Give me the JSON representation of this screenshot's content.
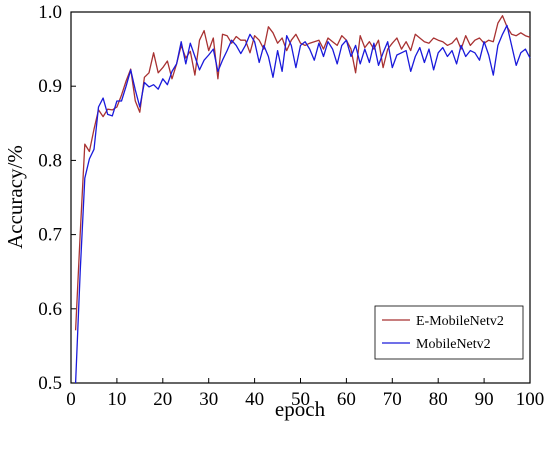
{
  "chart_data": {
    "type": "line",
    "xlabel": "epoch",
    "ylabel": "Accuracy/%",
    "xlim": [
      0,
      100
    ],
    "ylim": [
      0.5,
      1.0
    ],
    "xticks": [
      0,
      10,
      20,
      30,
      40,
      50,
      60,
      70,
      80,
      90,
      100
    ],
    "yticks": [
      0.5,
      0.6,
      0.7,
      0.8,
      0.9,
      1.0
    ],
    "ytick_labels": [
      "0.5",
      "0.6",
      "0.7",
      "0.8",
      "0.9",
      "1.0"
    ],
    "grid": false,
    "legend_position": "bottom-right",
    "series": [
      {
        "name": "E-MobileNetv2",
        "color": "#a83232",
        "x": [
          1,
          2,
          3,
          4,
          5,
          6,
          7,
          8,
          9,
          10,
          11,
          12,
          13,
          14,
          15,
          16,
          17,
          18,
          19,
          20,
          21,
          22,
          23,
          24,
          25,
          26,
          27,
          28,
          29,
          30,
          31,
          32,
          33,
          34,
          35,
          36,
          37,
          38,
          39,
          40,
          41,
          42,
          43,
          44,
          45,
          46,
          47,
          48,
          49,
          50,
          51,
          52,
          53,
          54,
          55,
          56,
          57,
          58,
          59,
          60,
          61,
          62,
          63,
          64,
          65,
          66,
          67,
          68,
          69,
          70,
          71,
          72,
          73,
          74,
          75,
          76,
          77,
          78,
          79,
          80,
          81,
          82,
          83,
          84,
          85,
          86,
          87,
          88,
          89,
          90,
          91,
          92,
          93,
          94,
          95,
          96,
          97,
          98,
          99,
          100
        ],
        "values": [
          0.571,
          0.701,
          0.822,
          0.812,
          0.842,
          0.868,
          0.859,
          0.869,
          0.868,
          0.872,
          0.888,
          0.907,
          0.923,
          0.88,
          0.865,
          0.912,
          0.918,
          0.945,
          0.918,
          0.925,
          0.934,
          0.91,
          0.93,
          0.955,
          0.938,
          0.947,
          0.915,
          0.962,
          0.975,
          0.948,
          0.965,
          0.91,
          0.97,
          0.968,
          0.958,
          0.967,
          0.962,
          0.962,
          0.945,
          0.968,
          0.962,
          0.95,
          0.98,
          0.972,
          0.958,
          0.965,
          0.948,
          0.962,
          0.97,
          0.958,
          0.955,
          0.958,
          0.96,
          0.962,
          0.95,
          0.965,
          0.96,
          0.955,
          0.968,
          0.962,
          0.95,
          0.918,
          0.968,
          0.952,
          0.96,
          0.95,
          0.962,
          0.925,
          0.95,
          0.958,
          0.965,
          0.95,
          0.96,
          0.948,
          0.97,
          0.965,
          0.96,
          0.958,
          0.965,
          0.962,
          0.96,
          0.955,
          0.958,
          0.965,
          0.95,
          0.968,
          0.955,
          0.962,
          0.965,
          0.958,
          0.962,
          0.96,
          0.985,
          0.995,
          0.98,
          0.97,
          0.968,
          0.972,
          0.968,
          0.966
        ]
      },
      {
        "name": "MobileNetv2",
        "color": "#1a1adb",
        "x": [
          1,
          2,
          3,
          4,
          5,
          6,
          7,
          8,
          9,
          10,
          11,
          12,
          13,
          14,
          15,
          16,
          17,
          18,
          19,
          20,
          21,
          22,
          23,
          24,
          25,
          26,
          27,
          28,
          29,
          30,
          31,
          32,
          33,
          34,
          35,
          36,
          37,
          38,
          39,
          40,
          41,
          42,
          43,
          44,
          45,
          46,
          47,
          48,
          49,
          50,
          51,
          52,
          53,
          54,
          55,
          56,
          57,
          58,
          59,
          60,
          61,
          62,
          63,
          64,
          65,
          66,
          67,
          68,
          69,
          70,
          71,
          72,
          73,
          74,
          75,
          76,
          77,
          78,
          79,
          80,
          81,
          82,
          83,
          84,
          85,
          86,
          87,
          88,
          89,
          90,
          91,
          92,
          93,
          94,
          95,
          96,
          97,
          98,
          99,
          100
        ],
        "values": [
          0.5,
          0.65,
          0.776,
          0.802,
          0.815,
          0.872,
          0.884,
          0.862,
          0.86,
          0.88,
          0.88,
          0.9,
          0.922,
          0.895,
          0.872,
          0.905,
          0.899,
          0.902,
          0.896,
          0.91,
          0.902,
          0.92,
          0.93,
          0.96,
          0.93,
          0.958,
          0.94,
          0.922,
          0.935,
          0.942,
          0.95,
          0.92,
          0.935,
          0.948,
          0.962,
          0.955,
          0.944,
          0.955,
          0.97,
          0.96,
          0.932,
          0.955,
          0.94,
          0.912,
          0.948,
          0.92,
          0.968,
          0.955,
          0.925,
          0.955,
          0.96,
          0.95,
          0.935,
          0.958,
          0.94,
          0.96,
          0.95,
          0.93,
          0.955,
          0.962,
          0.94,
          0.955,
          0.93,
          0.95,
          0.932,
          0.958,
          0.928,
          0.945,
          0.96,
          0.925,
          0.942,
          0.945,
          0.948,
          0.92,
          0.94,
          0.952,
          0.932,
          0.95,
          0.922,
          0.945,
          0.952,
          0.94,
          0.948,
          0.93,
          0.955,
          0.94,
          0.948,
          0.945,
          0.935,
          0.96,
          0.942,
          0.915,
          0.955,
          0.97,
          0.982,
          0.955,
          0.928,
          0.945,
          0.95,
          0.938
        ]
      }
    ]
  }
}
